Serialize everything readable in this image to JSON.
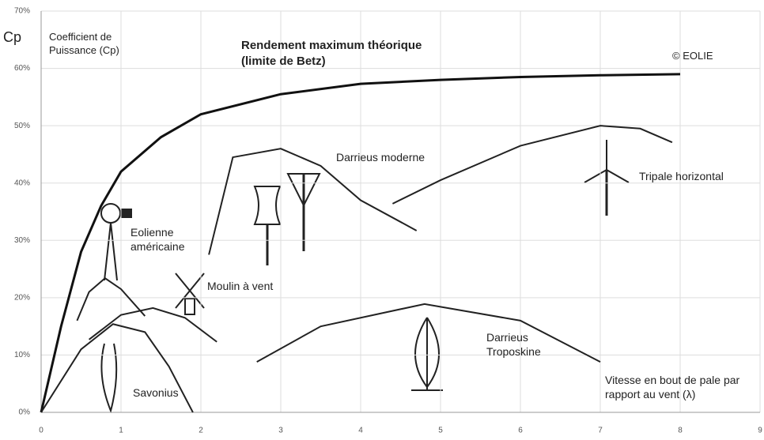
{
  "chart_data": {
    "type": "line",
    "y_label": "Cp",
    "subtitle": "Coefficient de Puissance (Cp)",
    "copyright": "© EOLIE",
    "x_label": "Vitesse en bout de pale par rapport au vent (λ)",
    "xlim": [
      0,
      9
    ],
    "xticks": [
      0,
      1,
      2,
      3,
      4,
      5,
      6,
      7,
      8,
      9
    ],
    "ylim": [
      0,
      70
    ],
    "yticks": [
      {
        "value": 0,
        "label": "0%"
      },
      {
        "value": 10,
        "label": "10%"
      },
      {
        "value": 20,
        "label": "20%"
      },
      {
        "value": 30,
        "label": "30%"
      },
      {
        "value": 40,
        "label": "40%"
      },
      {
        "value": 50,
        "label": "50%"
      },
      {
        "value": 60,
        "label": "60%"
      },
      {
        "value": 70,
        "label": "70%"
      }
    ],
    "grid": true,
    "series": [
      {
        "name": "Rendement maximum théorique (limite de Betz)",
        "color": "#111111",
        "x": [
          0,
          0.25,
          0.5,
          0.75,
          1,
          1.5,
          2,
          3,
          4,
          5,
          6,
          7,
          8
        ],
        "values": [
          0,
          15,
          28,
          36,
          42,
          48,
          52,
          55.5,
          57.3,
          58,
          58.5,
          58.8,
          59
        ]
      },
      {
        "name": "Darrieus moderne",
        "color": "#222222",
        "x": [
          2.1,
          2.4,
          3,
          3.5,
          4,
          4.7
        ],
        "values": [
          27.5,
          44.5,
          46,
          43,
          37,
          31.7
        ]
      },
      {
        "name": "Tripale horizontal",
        "color": "#222222",
        "x": [
          4.4,
          5,
          6,
          7,
          7.5,
          7.9
        ],
        "values": [
          36.4,
          40.5,
          46.5,
          50,
          49.5,
          47.1
        ]
      },
      {
        "name": "Eolienne américaine",
        "color": "#222222",
        "x": [
          0.45,
          0.6,
          0.8,
          1,
          1.3
        ],
        "values": [
          16,
          21,
          23.4,
          21.5,
          16.8
        ]
      },
      {
        "name": "Moulin à vent",
        "color": "#222222",
        "x": [
          0.6,
          1,
          1.4,
          1.8,
          2.2
        ],
        "values": [
          12.7,
          17,
          18.2,
          16.5,
          12.3
        ]
      },
      {
        "name": "Savonius",
        "color": "#222222",
        "x": [
          0,
          0.5,
          0.9,
          1.3,
          1.6,
          1.9
        ],
        "values": [
          0,
          11,
          15.4,
          14,
          8,
          0
        ]
      },
      {
        "name": "Darrieus Troposkine",
        "color": "#222222",
        "x": [
          2.7,
          3.5,
          4.8,
          6,
          7
        ],
        "values": [
          8.8,
          15,
          18.9,
          16,
          8.8
        ]
      }
    ]
  }
}
